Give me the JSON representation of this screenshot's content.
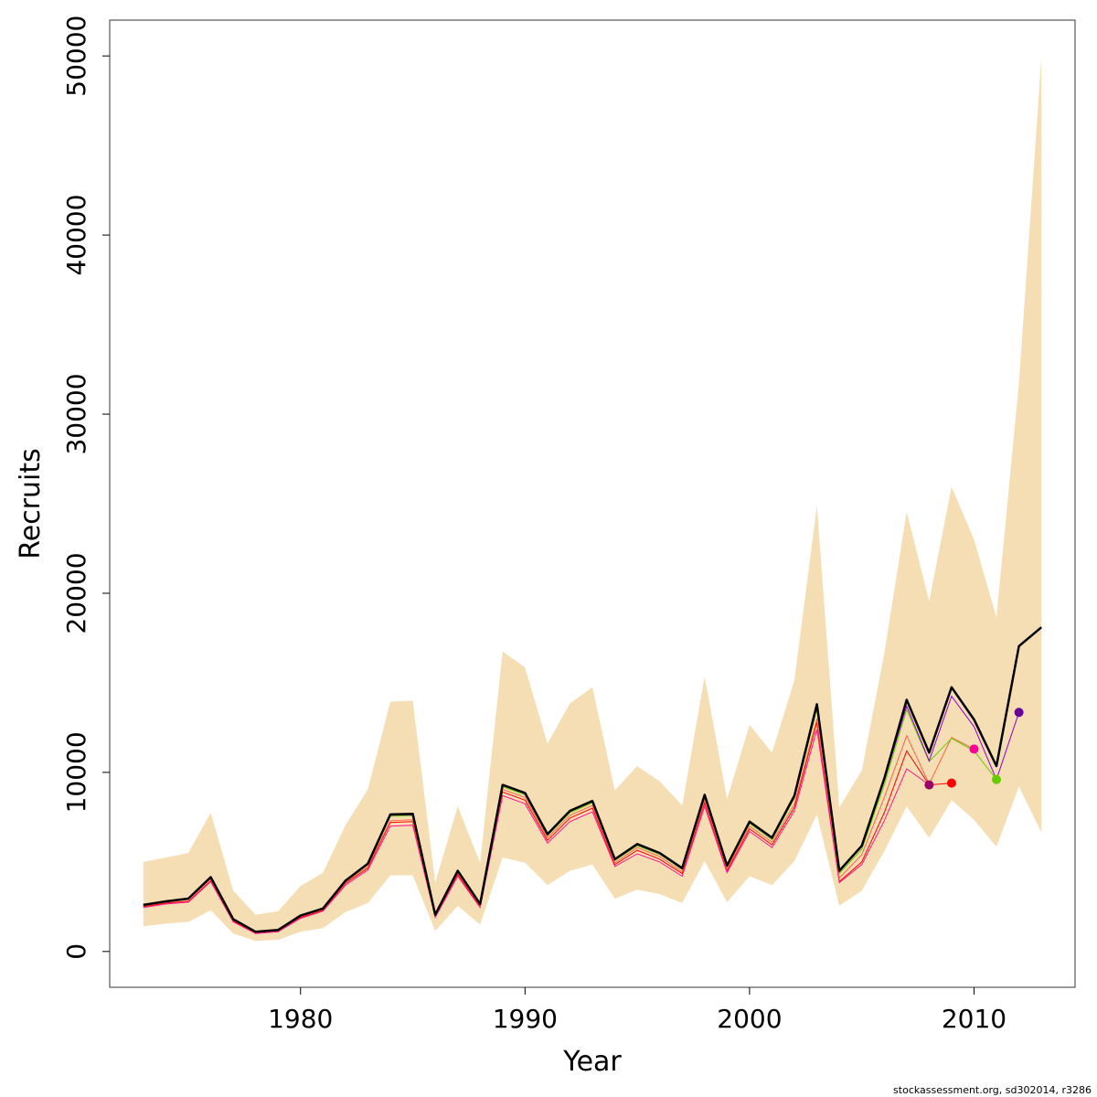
{
  "chart_data": {
    "type": "line",
    "xlabel": "Year",
    "ylabel": "Recruits",
    "xlim": [
      1971.5,
      2014.5
    ],
    "ylim": [
      -2000,
      52000
    ],
    "x_ticks": [
      1980,
      1990,
      2000,
      2010
    ],
    "y_ticks": [
      0,
      10000,
      20000,
      30000,
      40000,
      50000
    ],
    "credit": "stockassessment.org, sd302014, r3286",
    "band_color": "#F5DEB3",
    "main_color": "#000000",
    "years": [
      1973,
      1974,
      1975,
      1976,
      1977,
      1978,
      1979,
      1980,
      1981,
      1982,
      1983,
      1984,
      1985,
      1986,
      1987,
      1988,
      1989,
      1990,
      1991,
      1992,
      1993,
      1994,
      1995,
      1996,
      1997,
      1998,
      1999,
      2000,
      2001,
      2002,
      2003,
      2004,
      2005,
      2006,
      2007,
      2008,
      2009,
      2010,
      2011,
      2012,
      2013
    ],
    "main": [
      2600,
      2800,
      2950,
      4150,
      1800,
      1100,
      1200,
      2000,
      2400,
      3950,
      4900,
      7650,
      7680,
      2050,
      4500,
      2650,
      9300,
      8850,
      6550,
      7850,
      8400,
      5150,
      6000,
      5500,
      4650,
      8750,
      4800,
      7250,
      6350,
      8700,
      13800,
      4500,
      5900,
      9650,
      14050,
      11100,
      14750,
      12950,
      10350,
      17050,
      18100
    ],
    "upper": [
      5000,
      5250,
      5500,
      7750,
      3400,
      2050,
      2250,
      3650,
      4400,
      7050,
      9050,
      13950,
      14000,
      3850,
      8100,
      4950,
      16750,
      15850,
      11600,
      13850,
      14750,
      9000,
      10350,
      9500,
      8150,
      15350,
      8500,
      12650,
      11100,
      15150,
      24900,
      8050,
      10100,
      16650,
      24550,
      19550,
      25950,
      23000,
      18650,
      31750,
      49900
    ],
    "lower": [
      1400,
      1550,
      1650,
      2300,
      1000,
      600,
      650,
      1100,
      1300,
      2200,
      2700,
      4250,
      4250,
      1150,
      2550,
      1500,
      5250,
      4950,
      3700,
      4500,
      4850,
      2950,
      3450,
      3200,
      2700,
      5050,
      2750,
      4200,
      3700,
      5050,
      7650,
      2550,
      3400,
      5600,
      8100,
      6350,
      8450,
      7350,
      5850,
      9200,
      6650
    ],
    "peels": [
      {
        "color": "#FF0000",
        "values": [
          2500,
          2700,
          2800,
          3950,
          1700,
          1050,
          1150,
          1900,
          2300,
          3800,
          4650,
          7200,
          7250,
          1950,
          4300,
          2500,
          8900,
          8450,
          6200,
          7450,
          8000,
          4850,
          5650,
          5150,
          4350,
          8300,
          4500,
          6850,
          5950,
          8050,
          12800,
          3900,
          5000,
          7750,
          11200,
          9300,
          9400
        ]
      },
      {
        "color": "#FF1493",
        "values": [
          2450,
          2650,
          2750,
          3900,
          1650,
          1000,
          1100,
          1850,
          2250,
          3700,
          4550,
          7000,
          7050,
          1900,
          4200,
          2450,
          8700,
          8250,
          6050,
          7250,
          7800,
          4750,
          5450,
          5000,
          4200,
          8100,
          4400,
          6700,
          5800,
          7850,
          12400,
          3850,
          4850,
          7300,
          10200,
          9300
        ]
      },
      {
        "color": "#FF6347",
        "values": [
          2550,
          2750,
          2900,
          4050,
          1750,
          1100,
          1150,
          1950,
          2350,
          3850,
          4750,
          7300,
          7350,
          2000,
          4400,
          2550,
          9050,
          8600,
          6350,
          7600,
          8150,
          4950,
          5800,
          5300,
          4450,
          8450,
          4600,
          7000,
          6100,
          8250,
          13000,
          4100,
          5400,
          8600,
          12050,
          9350,
          11950,
          11300
        ]
      },
      {
        "color": "#66CC00",
        "values": [
          2580,
          2780,
          2920,
          4100,
          1780,
          1090,
          1180,
          1980,
          2380,
          3900,
          4850,
          7550,
          7580,
          2030,
          4450,
          2620,
          9200,
          8750,
          6480,
          7750,
          8300,
          5080,
          5900,
          5420,
          4580,
          8600,
          4720,
          7150,
          6250,
          8550,
          13550,
          4350,
          5700,
          9300,
          13500,
          10600,
          11900,
          11200,
          9600
        ]
      },
      {
        "color": "#9400D3",
        "values": [
          2590,
          2790,
          2940,
          4130,
          1790,
          1095,
          1190,
          1990,
          2390,
          3930,
          4880,
          7600,
          7630,
          2040,
          4480,
          2640,
          9270,
          8820,
          6520,
          7820,
          8360,
          5120,
          5960,
          5470,
          4620,
          8700,
          4770,
          7220,
          6310,
          8650,
          13700,
          4450,
          5850,
          9550,
          13700,
          10650,
          14250,
          12550,
          9600,
          13350
        ]
      }
    ],
    "endpoint_colors": [
      "#FF0000",
      "#990066",
      "#FF0099",
      "#66CC00",
      "#660099"
    ]
  }
}
